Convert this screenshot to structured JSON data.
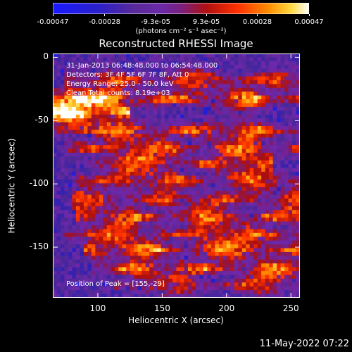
{
  "colorbar": {
    "ticks": [
      "-0.00047",
      "-0.00028",
      "-9.3e-05",
      "9.3e-05",
      "0.00028",
      "0.00047"
    ],
    "tick_values": [
      -0.00047,
      -0.00028,
      -9.3e-05,
      9.3e-05,
      0.00028,
      0.00047
    ],
    "units": "(photons cm⁻² s⁻¹ asec⁻²)",
    "range": [
      -0.00047,
      0.00047
    ],
    "colormap": "rainbow/hot"
  },
  "chart_data": {
    "type": "heatmap",
    "title": "Reconstructed RHESSI Image",
    "xlabel": "Heliocentric X (arcsec)",
    "ylabel": "Heliocentric Y (arcsec)",
    "xlim": [
      65,
      257
    ],
    "ylim": [
      -190,
      3
    ],
    "xticks": [
      100,
      150,
      200,
      250
    ],
    "yticks": [
      0,
      -50,
      -100,
      -150
    ],
    "annotations": [
      "31-Jan-2013 06:48:48.000 to 06:54:48.000",
      "Detectors: 3F 4F 5F 6F 7F 8F, Att 0",
      "Energy Range: 25.0 - 50.0 keV",
      "Clean    Total counts: 8.19e+03",
      "Position of Peak = [155,-29]"
    ],
    "peak": [
      155,
      -29
    ],
    "bands": [
      {
        "y": -18,
        "x0": 80,
        "x1": 257,
        "strength": 0.7
      },
      {
        "y": -33,
        "x0": 70,
        "x1": 257,
        "strength": 0.9
      },
      {
        "y": -43,
        "x0": 68,
        "x1": 120,
        "strength": 1.0
      },
      {
        "y": -58,
        "x0": 90,
        "x1": 250,
        "strength": 0.8
      },
      {
        "y": -72,
        "x0": 80,
        "x1": 257,
        "strength": 0.75
      },
      {
        "y": -84,
        "x0": 95,
        "x1": 230,
        "strength": 0.7
      },
      {
        "y": -97,
        "x0": 88,
        "x1": 257,
        "strength": 0.75
      },
      {
        "y": -112,
        "x0": 85,
        "x1": 257,
        "strength": 0.7
      },
      {
        "y": -126,
        "x0": 90,
        "x1": 250,
        "strength": 0.8
      },
      {
        "y": -140,
        "x0": 80,
        "x1": 257,
        "strength": 0.75
      },
      {
        "y": -152,
        "x0": 95,
        "x1": 250,
        "strength": 0.85
      },
      {
        "y": -167,
        "x0": 100,
        "x1": 257,
        "strength": 0.8
      },
      {
        "y": -180,
        "x0": 120,
        "x1": 257,
        "strength": 0.6
      }
    ]
  },
  "timestamp": "11-May-2022 07:22"
}
